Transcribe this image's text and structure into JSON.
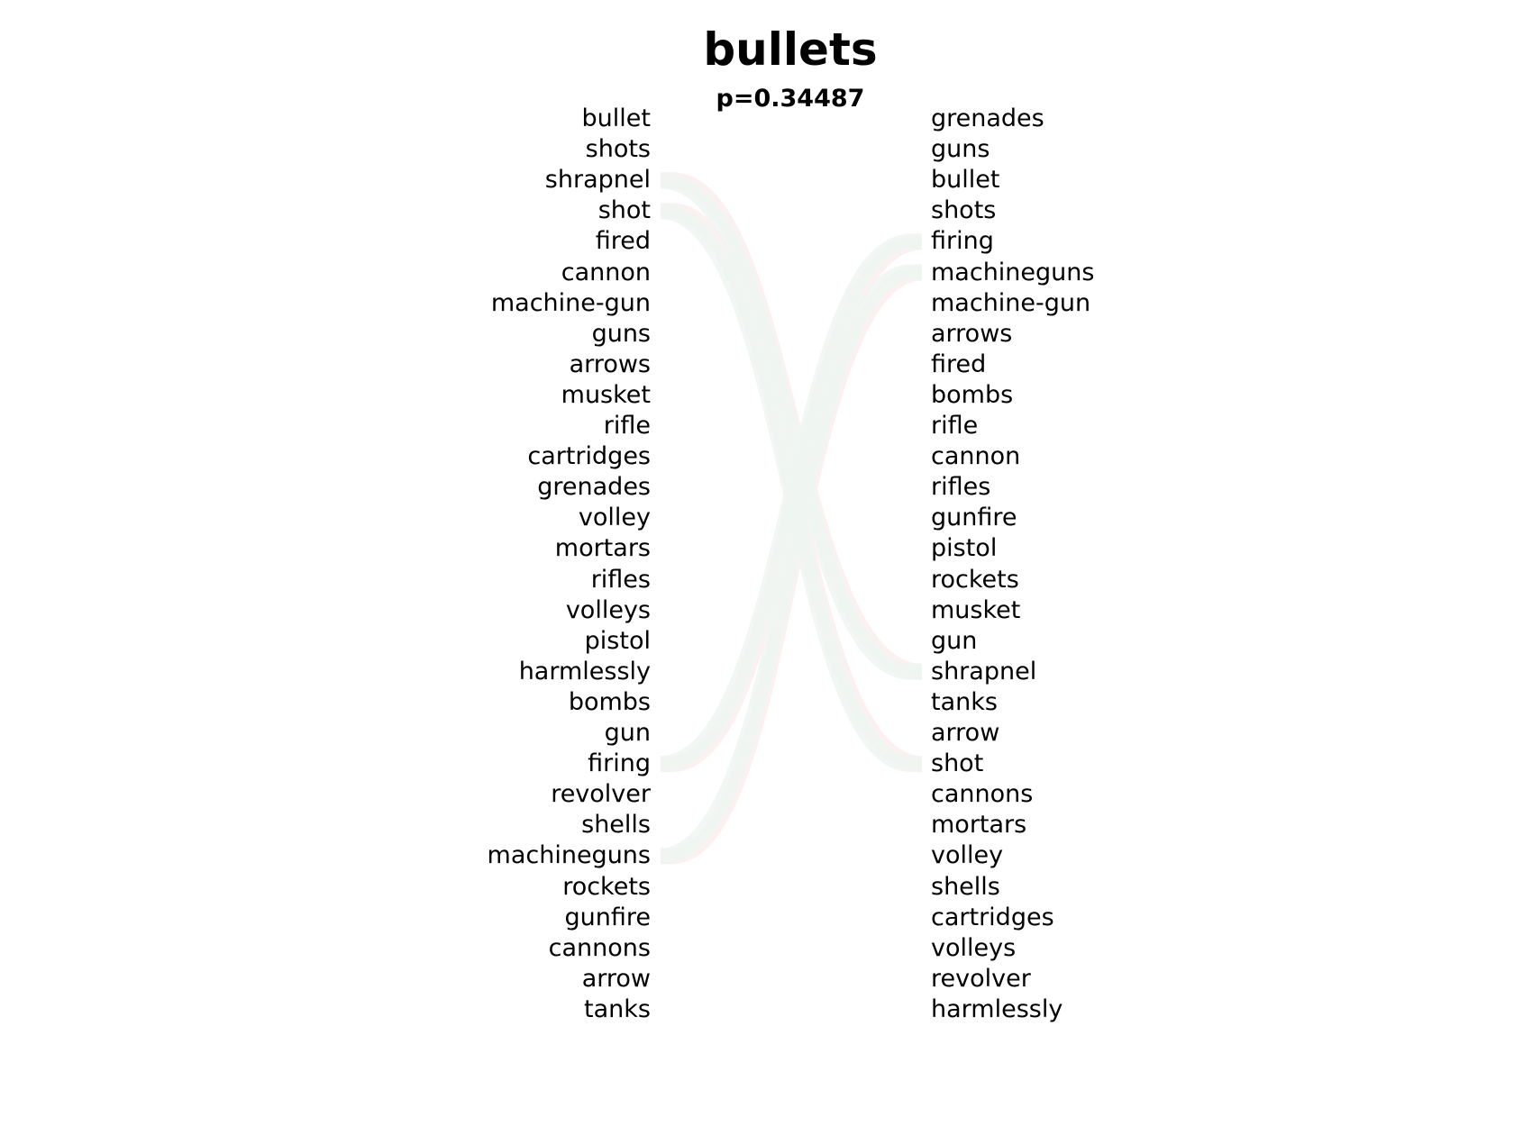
{
  "title": "bullets",
  "subtitle": "p=0.34487",
  "left_words": [
    "bullet",
    "shots",
    "shrapnel",
    "shot",
    "fired",
    "cannon",
    "machine-gun",
    "guns",
    "arrows",
    "musket",
    "rifle",
    "cartridges",
    "grenades",
    "volley",
    "mortars",
    "rifles",
    "volleys",
    "pistol",
    "harmlessly",
    "bombs",
    "gun",
    "firing",
    "revolver",
    "shells",
    "machineguns",
    "rockets",
    "gunfire",
    "cannons",
    "arrow",
    "tanks"
  ],
  "right_words": [
    "grenades",
    "guns",
    "bullet",
    "shots",
    "firing",
    "machineguns",
    "machine-gun",
    "arrows",
    "fired",
    "bombs",
    "rifle",
    "cannon",
    "rifles",
    "gunfire",
    "pistol",
    "rockets",
    "musket",
    "gun",
    "shrapnel",
    "tanks",
    "arrow",
    "shot",
    "cannons",
    "mortars",
    "volley",
    "shells",
    "cartridges",
    "volleys",
    "revolver",
    "harmlessly"
  ],
  "links": [
    {
      "word": "shrapnel",
      "left_index": 2,
      "right_index": 18,
      "color": "#fbeeee",
      "side": "left"
    },
    {
      "word": "shot",
      "left_index": 3,
      "right_index": 21,
      "color": "#fbeeee",
      "side": "left"
    },
    {
      "word": "firing",
      "left_index": 21,
      "right_index": 4,
      "color": "#fbeeee",
      "side": "left"
    },
    {
      "word": "machineguns",
      "left_index": 24,
      "right_index": 5,
      "color": "#fbeeee",
      "side": "left"
    },
    {
      "word": "firing",
      "left_index": 21,
      "right_index": 4,
      "color": "#eef6f2",
      "side": "right"
    },
    {
      "word": "machineguns",
      "left_index": 24,
      "right_index": 5,
      "color": "#eef6f2",
      "side": "right"
    },
    {
      "word": "shrapnel",
      "left_index": 2,
      "right_index": 18,
      "color": "#eef6f2",
      "side": "right"
    },
    {
      "word": "shot",
      "left_index": 3,
      "right_index": 21,
      "color": "#eef6f2",
      "side": "right"
    }
  ]
}
